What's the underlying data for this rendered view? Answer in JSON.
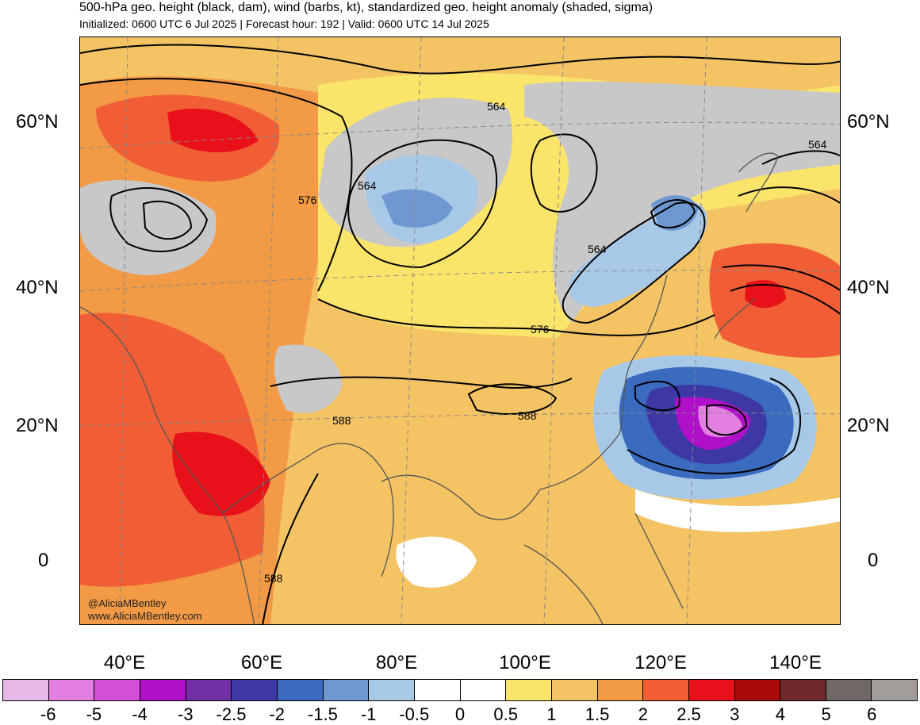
{
  "header": {
    "title": "500-hPa geo. height (black, dam), wind (barbs, kt), standardized geo. height anomaly (shaded, sigma)",
    "subtitle": "Initialized: 0600 UTC 6 Jul 2025 | Forecast hour: 192 | Valid: 0600 UTC 14 Jul 2025"
  },
  "map": {
    "lat_labels_left": [
      "60°N",
      "40°N",
      "20°N",
      "0"
    ],
    "lat_labels_right": [
      "60°N",
      "40°N",
      "20°N",
      "0"
    ],
    "lon_labels": [
      "40°E",
      "60°E",
      "80°E",
      "100°E",
      "120°E",
      "140°E"
    ],
    "contour_labels": [
      "564",
      "576",
      "564",
      "564",
      "564",
      "576",
      "588",
      "588",
      "588"
    ],
    "watermark": [
      "@AliciaMBentley",
      "www.AliciaMBentley.com"
    ],
    "colors": {
      "ocean_base": "#f4c363",
      "land_gray": "#c8c8c8",
      "contour": "#000000",
      "coast": "#555555"
    }
  },
  "colorbar": {
    "labels": [
      "-6",
      "-5",
      "-4",
      "-3",
      "-2.5",
      "-2",
      "-1.5",
      "-1",
      "-0.5",
      "0",
      "0.5",
      "1",
      "1.5",
      "2",
      "2.5",
      "3",
      "4",
      "5",
      "6"
    ],
    "colors": [
      "#e9b6e8",
      "#e27fe0",
      "#d24fd6",
      "#b110c9",
      "#7030a6",
      "#3d38a3",
      "#3a6bbf",
      "#6f97d1",
      "#a7c8e6",
      "#ffffff",
      "#ffffff",
      "#fae56a",
      "#f4c363",
      "#f29a45",
      "#f15e36",
      "#e8111a",
      "#a80a0a",
      "#6e2a2a",
      "#6f6865",
      "#a39d9a"
    ]
  }
}
